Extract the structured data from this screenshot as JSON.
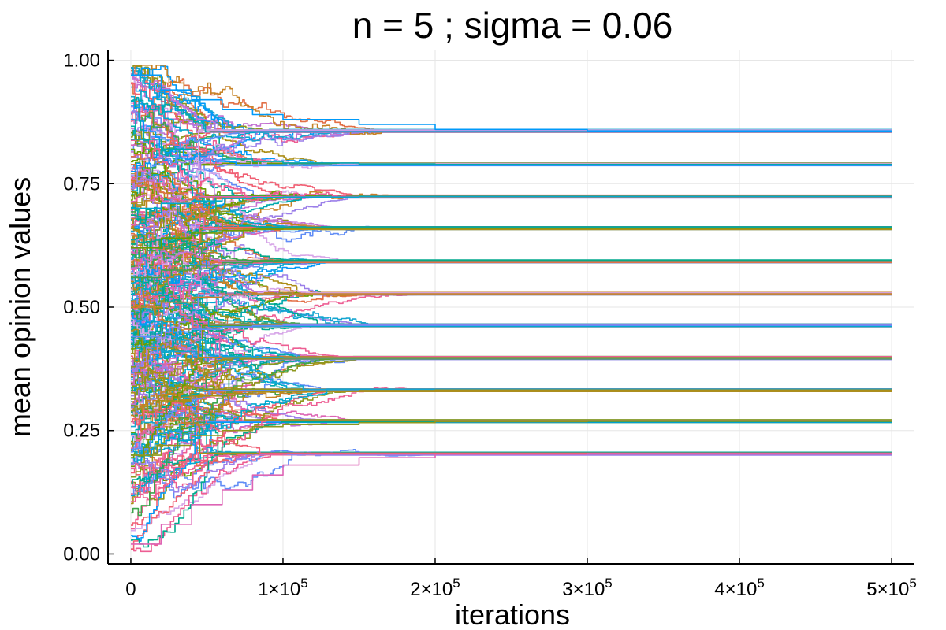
{
  "chart_data": {
    "type": "line",
    "title": "n = 5 ; sigma = 0.06",
    "xlabel": "iterations",
    "ylabel": "mean opinion values",
    "xlim": [
      -15000,
      515000
    ],
    "ylim": [
      -0.02,
      1.02
    ],
    "grid": true,
    "legend": "none",
    "x_ticks": [
      {
        "value": 0,
        "mantissa": "0",
        "exponent": ""
      },
      {
        "value": 100000,
        "mantissa": "1×10",
        "exponent": "5"
      },
      {
        "value": 200000,
        "mantissa": "2×10",
        "exponent": "5"
      },
      {
        "value": 300000,
        "mantissa": "3×10",
        "exponent": "5"
      },
      {
        "value": 400000,
        "mantissa": "4×10",
        "exponent": "5"
      },
      {
        "value": 500000,
        "mantissa": "5×10",
        "exponent": "5"
      }
    ],
    "y_ticks": [
      {
        "value": 0.0,
        "label": "0.00"
      },
      {
        "value": 0.25,
        "label": "0.25"
      },
      {
        "value": 0.5,
        "label": "0.50"
      },
      {
        "value": 0.75,
        "label": "0.75"
      },
      {
        "value": 1.0,
        "label": "1.00"
      }
    ],
    "series_palette": [
      "#009af9",
      "#e26f46",
      "#3da44d",
      "#c271d2",
      "#ac8e18",
      "#00a9ad",
      "#ed5e93",
      "#c68225",
      "#00a98d",
      "#8e971d",
      "#00a9ce",
      "#9b7fe9",
      "#618df6",
      "#f05f73",
      "#dd64b5",
      "#6b9d00",
      "#d7a6e8",
      "#15a6d1"
    ],
    "series_count": 300,
    "series": [
      {
        "name": "",
        "x": [
          0,
          20000,
          40000,
          60000,
          80000,
          100000,
          150000,
          200000,
          300000,
          400000,
          500000
        ],
        "values": [
          0.97,
          0.94,
          0.92,
          0.9,
          0.89,
          0.88,
          0.87,
          0.86,
          0.857,
          0.857,
          0.857
        ]
      },
      {
        "name": "",
        "x": [
          0,
          20000,
          40000,
          60000,
          80000,
          100000,
          150000,
          200000,
          300000,
          400000,
          500000
        ],
        "values": [
          0.84,
          0.82,
          0.81,
          0.8,
          0.795,
          0.792,
          0.79,
          0.789,
          0.789,
          0.789,
          0.789
        ]
      },
      {
        "name": "",
        "x": [
          0,
          20000,
          40000,
          60000,
          80000,
          100000,
          150000,
          200000,
          300000,
          400000,
          500000
        ],
        "values": [
          0.7,
          0.71,
          0.715,
          0.72,
          0.722,
          0.723,
          0.724,
          0.724,
          0.724,
          0.724,
          0.724
        ]
      },
      {
        "name": "",
        "x": [
          0,
          20000,
          40000,
          60000,
          80000,
          100000,
          150000,
          200000,
          300000,
          400000,
          500000
        ],
        "values": [
          0.62,
          0.64,
          0.65,
          0.655,
          0.658,
          0.66,
          0.66,
          0.66,
          0.66,
          0.66,
          0.66
        ]
      },
      {
        "name": "",
        "x": [
          0,
          20000,
          40000,
          60000,
          80000,
          100000,
          150000,
          200000,
          300000,
          400000,
          500000
        ],
        "values": [
          0.56,
          0.575,
          0.585,
          0.59,
          0.592,
          0.593,
          0.593,
          0.593,
          0.593,
          0.593,
          0.593
        ]
      },
      {
        "name": "",
        "x": [
          0,
          20000,
          40000,
          60000,
          80000,
          100000,
          150000,
          200000,
          300000,
          400000,
          500000
        ],
        "values": [
          0.5,
          0.51,
          0.52,
          0.525,
          0.527,
          0.527,
          0.527,
          0.527,
          0.527,
          0.527,
          0.527
        ]
      },
      {
        "name": "",
        "x": [
          0,
          20000,
          40000,
          60000,
          80000,
          100000,
          150000,
          200000,
          300000,
          400000,
          500000
        ],
        "values": [
          0.44,
          0.45,
          0.455,
          0.46,
          0.462,
          0.463,
          0.463,
          0.463,
          0.463,
          0.463,
          0.463
        ]
      },
      {
        "name": "",
        "x": [
          0,
          20000,
          40000,
          60000,
          80000,
          100000,
          150000,
          200000,
          300000,
          400000,
          500000
        ],
        "values": [
          0.42,
          0.41,
          0.405,
          0.4,
          0.398,
          0.397,
          0.397,
          0.397,
          0.397,
          0.397,
          0.397
        ]
      },
      {
        "name": "",
        "x": [
          0,
          20000,
          40000,
          60000,
          80000,
          100000,
          150000,
          200000,
          300000,
          400000,
          500000
        ],
        "values": [
          0.3,
          0.31,
          0.32,
          0.325,
          0.328,
          0.33,
          0.331,
          0.332,
          0.332,
          0.332,
          0.332
        ]
      },
      {
        "name": "",
        "x": [
          0,
          20000,
          40000,
          60000,
          80000,
          100000,
          150000,
          200000,
          300000,
          400000,
          500000
        ],
        "values": [
          0.2,
          0.22,
          0.24,
          0.25,
          0.258,
          0.262,
          0.266,
          0.268,
          0.269,
          0.269,
          0.269
        ]
      },
      {
        "name": "",
        "x": [
          0,
          20000,
          40000,
          60000,
          80000,
          100000,
          150000,
          200000,
          300000,
          400000,
          500000
        ],
        "values": [
          0.02,
          0.06,
          0.1,
          0.13,
          0.16,
          0.18,
          0.195,
          0.202,
          0.203,
          0.203,
          0.203
        ]
      }
    ],
    "cluster_levels": [
      0.203,
      0.269,
      0.332,
      0.397,
      0.463,
      0.527,
      0.593,
      0.66,
      0.724,
      0.789,
      0.857
    ]
  }
}
